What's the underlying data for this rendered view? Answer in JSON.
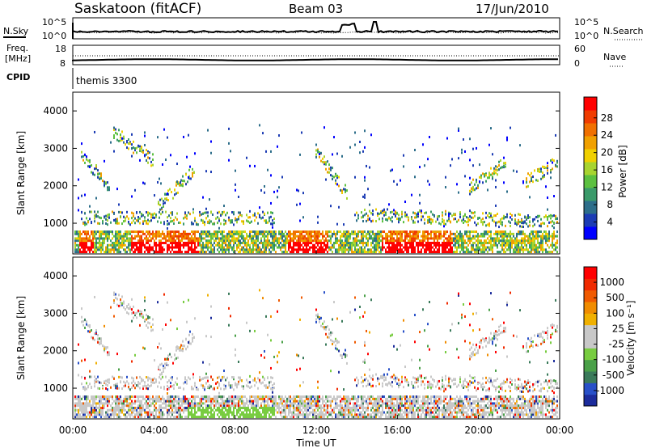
{
  "header": {
    "station": "Saskatoon (fitACF)",
    "beam": "Beam 03",
    "date": "17/Jun/2010"
  },
  "left_labels": {
    "nsky": "N.Sky",
    "freq_line1": "Freq.",
    "freq_line2": "[MHz]",
    "cpid": "CPID"
  },
  "right_labels": {
    "nsearch": "N.Search",
    "nave": "Nave"
  },
  "cpid_value": "themis 3300",
  "chart_data": [
    {
      "type": "line",
      "panel": "noise",
      "y_ticks_left": [
        "10^5",
        "10^0"
      ],
      "y_ticks_right": [
        "10^5",
        "10^0"
      ],
      "series": [
        {
          "name": "N.Sky"
        },
        {
          "name": "N.Search"
        }
      ]
    },
    {
      "type": "line",
      "panel": "frequency",
      "y_ticks_left": [
        "18",
        "8"
      ],
      "y_ticks_right": [
        "60",
        "0"
      ],
      "series": [
        {
          "name": "Freq."
        },
        {
          "name": "Nave"
        }
      ]
    },
    {
      "type": "heatmap",
      "panel": "power",
      "ylabel": "Slant Range [km]",
      "ylim": [
        180,
        4500
      ],
      "yticks": [
        "1000",
        "2000",
        "3000",
        "4000"
      ],
      "colorbar": {
        "label": "Power [dB]",
        "ticks": [
          "4",
          "8",
          "12",
          "16",
          "20",
          "24",
          "28"
        ],
        "colors": [
          "#0000ff",
          "#1c3cb4",
          "#2d6e8a",
          "#3a9a6a",
          "#5cc040",
          "#a8d430",
          "#f0d000",
          "#f0a000",
          "#f07000",
          "#f03c00",
          "#ff0000"
        ]
      }
    },
    {
      "type": "heatmap",
      "panel": "velocity",
      "ylabel": "Slant Range [km]",
      "ylim": [
        180,
        4500
      ],
      "yticks": [
        "1000",
        "2000",
        "3000",
        "4000"
      ],
      "colorbar": {
        "label": "Velocity [m s⁻¹]",
        "ticks": [
          "1000",
          "500",
          "100",
          "25",
          "-25",
          "-100",
          "-500",
          "-1000"
        ],
        "colors": [
          "#1c2c9c",
          "#2850c8",
          "#3a7a5a",
          "#4aa048",
          "#78cc40",
          "#c8c8c8",
          "#c8c8c8",
          "#f0b000",
          "#f08c00",
          "#f05a00",
          "#f02a00",
          "#ff0000"
        ]
      }
    }
  ],
  "x_axis": {
    "ticks": [
      "00:00",
      "04:00",
      "08:00",
      "12:00",
      "16:00",
      "20:00",
      "00:00"
    ],
    "label": "Time UT"
  }
}
